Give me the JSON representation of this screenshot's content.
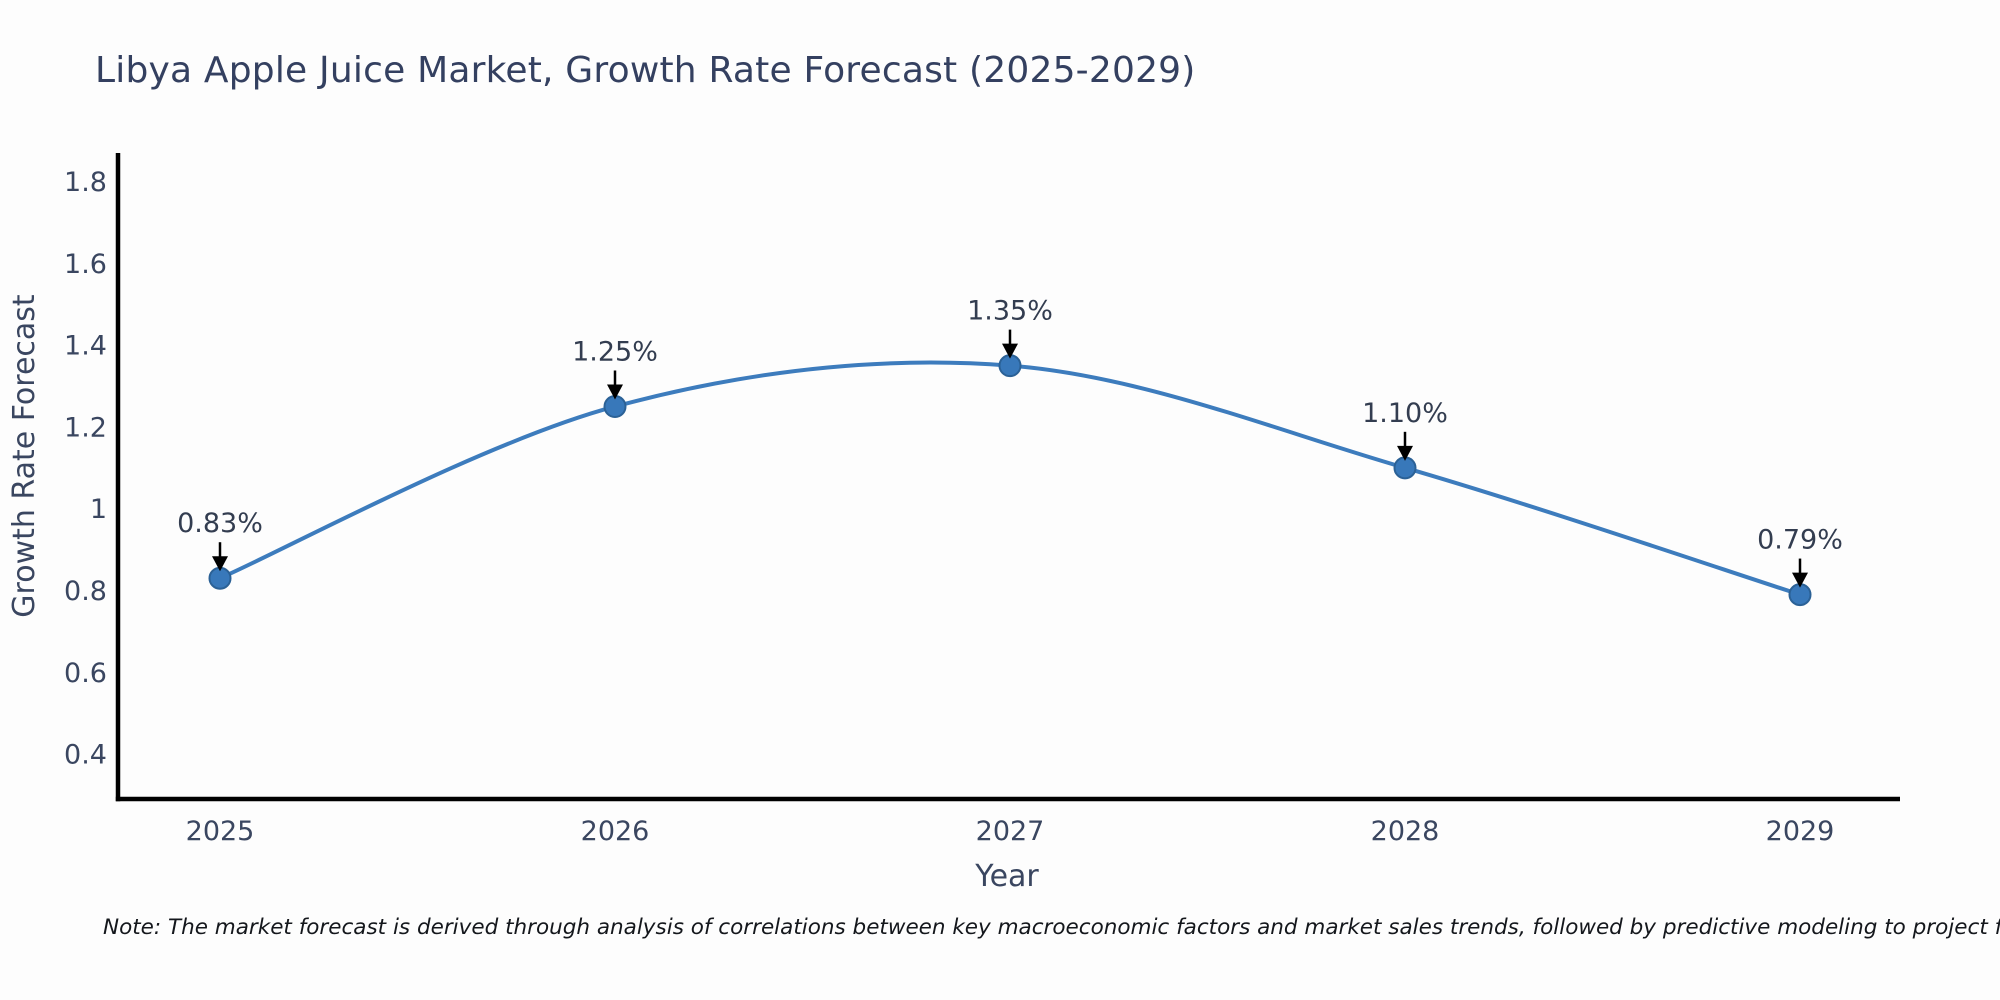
{
  "chart_data": {
    "type": "line",
    "title": "Libya Apple Juice Market, Growth Rate Forecast (2025-2029)",
    "xlabel": "Year",
    "ylabel": "Growth Rate Forecast",
    "categories": [
      "2025",
      "2026",
      "2027",
      "2028",
      "2029"
    ],
    "values": [
      0.83,
      1.25,
      1.35,
      1.1,
      0.79
    ],
    "point_labels": [
      "0.83%",
      "1.25%",
      "1.35%",
      "1.10%",
      "0.79%"
    ],
    "yticks": [
      0.4,
      0.6,
      0.8,
      1.0,
      1.2,
      1.4,
      1.6,
      1.8
    ],
    "ytick_labels": [
      "0.4",
      "0.6",
      "0.8",
      "1",
      "1.2",
      "1.4",
      "1.6",
      "1.8"
    ],
    "ylim": [
      0.29,
      1.87
    ],
    "grid": false,
    "legend": "none",
    "smooth_curve": true,
    "colors": {
      "line": "#3d7cbd",
      "marker_fill": "#3878ba",
      "marker_edge": "#2b6196",
      "arrow": "#000000",
      "axis": "#000000",
      "title_text": "#344060",
      "tick_text": "#3a4660",
      "annotation_text": "#333d50"
    }
  },
  "footnote": "Note: The market forecast is derived through analysis of correlations between key macroeconomic factors and market sales trends, followed by predictive modeling to project future sales"
}
